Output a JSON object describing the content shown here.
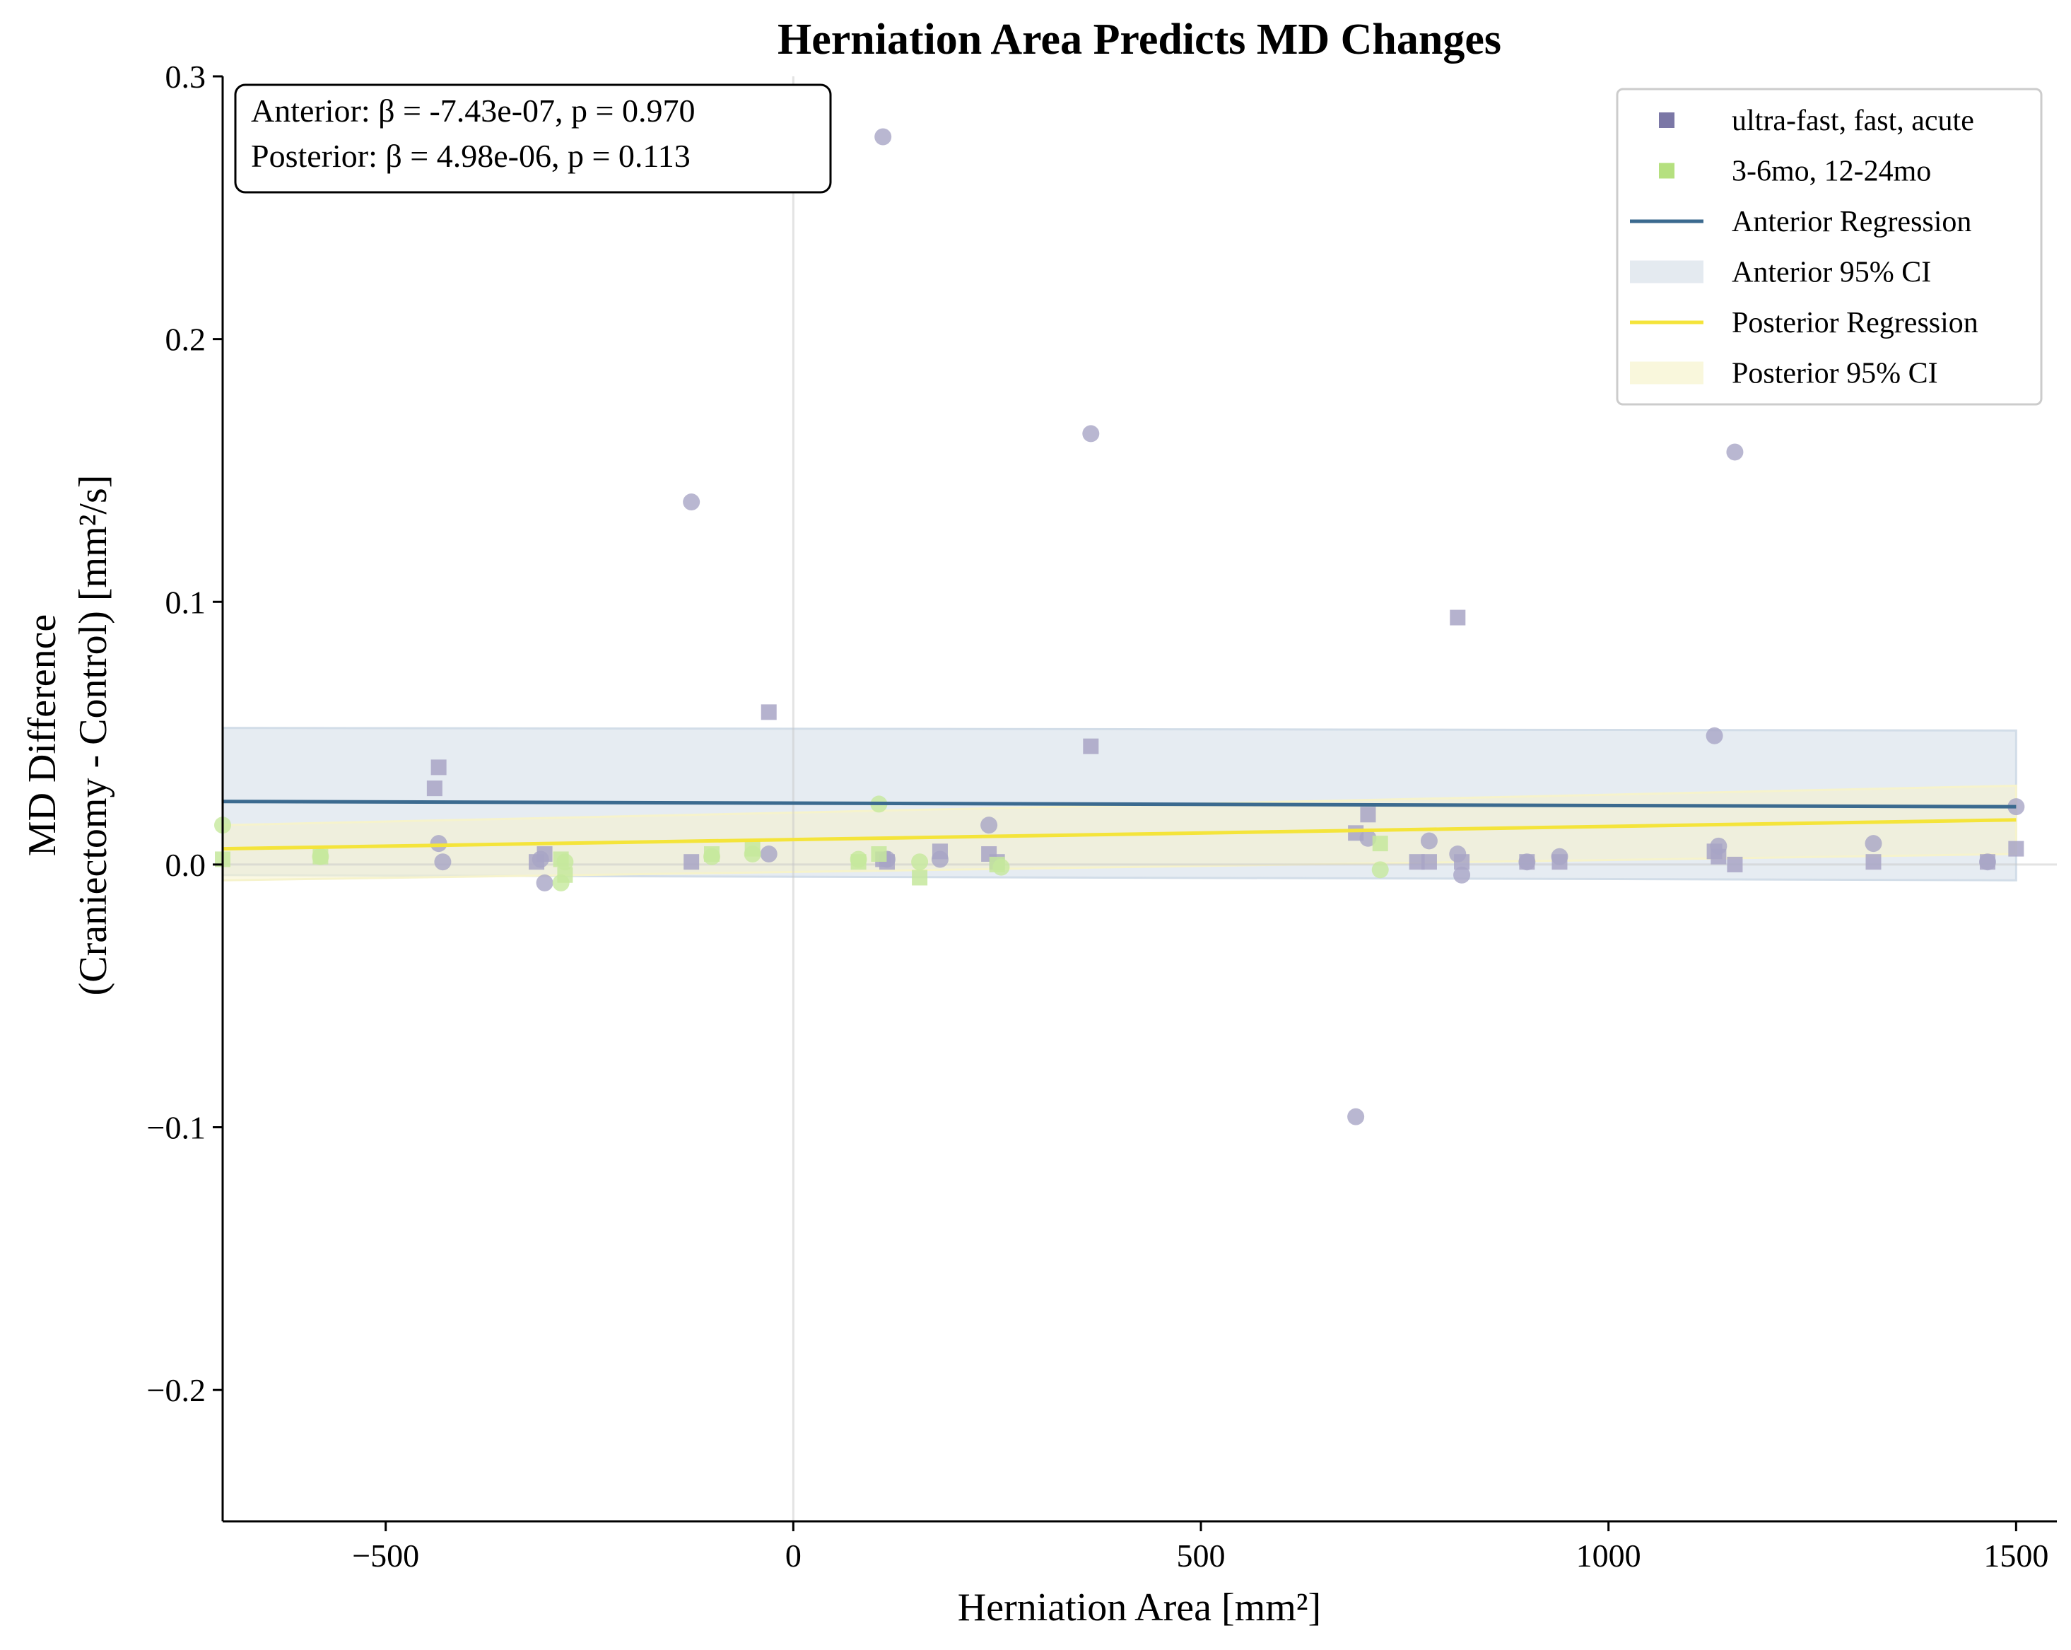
{
  "chart_data": {
    "type": "scatter",
    "title": "Herniation Area Predicts MD Changes",
    "xlabel": "Herniation Area [mm²]",
    "ylabel": [
      "MD Difference",
      "(Craniectomy - Control) [mm²/s]"
    ],
    "xlim": [
      -700,
      1550
    ],
    "ylim": [
      -0.25,
      0.3
    ],
    "xticks": [
      -500,
      0,
      500,
      1000,
      1500
    ],
    "xtick_labels": [
      "−500",
      "0",
      "500",
      "1000",
      "1500"
    ],
    "yticks": [
      -0.2,
      -0.1,
      0.0,
      0.1,
      0.2,
      0.3
    ],
    "ytick_labels": [
      "−0.2",
      "−0.1",
      "0.0",
      "0.1",
      "0.2",
      "0.3"
    ],
    "grid": false,
    "reference_lines": {
      "x": 0,
      "y": 0
    },
    "legend_position": "top-right",
    "stats_box": {
      "position": "top-left",
      "lines": [
        "Anterior: β = -7.43e-07, p = 0.970",
        "Posterior: β = 4.98e-06, p = 0.113"
      ]
    },
    "legend": [
      {
        "label": "ultra-fast, fast, acute",
        "kind": "square-marker",
        "color": "#7b77a6"
      },
      {
        "label": "3-6mo, 12-24mo",
        "kind": "square-marker",
        "color": "#b5e07f"
      },
      {
        "label": "Anterior Regression",
        "kind": "line",
        "color": "#3b6a8f"
      },
      {
        "label": "Anterior 95% CI",
        "kind": "band",
        "color": "#e4eaf0"
      },
      {
        "label": "Posterior Regression",
        "kind": "line",
        "color": "#f4e43a"
      },
      {
        "label": "Posterior 95% CI",
        "kind": "band",
        "color": "#f9f7dc"
      }
    ],
    "series": [
      {
        "name": "ultra-fast, fast, acute",
        "role": "anterior",
        "marker": "square",
        "color": "#a8a5c5",
        "points": [
          {
            "x": -435,
            "y": 0.037
          },
          {
            "x": -440,
            "y": 0.029
          },
          {
            "x": -315,
            "y": 0.001
          },
          {
            "x": -305,
            "y": 0.004
          },
          {
            "x": -125,
            "y": 0.001
          },
          {
            "x": -30,
            "y": 0.058
          },
          {
            "x": 110,
            "y": 0.002
          },
          {
            "x": 115,
            "y": 0.001
          },
          {
            "x": 180,
            "y": 0.005
          },
          {
            "x": 240,
            "y": 0.004
          },
          {
            "x": 250,
            "y": 0.001
          },
          {
            "x": 365,
            "y": 0.045
          },
          {
            "x": 690,
            "y": 0.012
          },
          {
            "x": 705,
            "y": 0.019
          },
          {
            "x": 765,
            "y": 0.001
          },
          {
            "x": 780,
            "y": 0.001
          },
          {
            "x": 815,
            "y": 0.094
          },
          {
            "x": 820,
            "y": 0.001
          },
          {
            "x": 900,
            "y": 0.001
          },
          {
            "x": 940,
            "y": 0.001
          },
          {
            "x": 1130,
            "y": 0.005
          },
          {
            "x": 1135,
            "y": 0.003
          },
          {
            "x": 1155,
            "y": 0.0
          },
          {
            "x": 1325,
            "y": 0.001
          },
          {
            "x": 1465,
            "y": 0.001
          },
          {
            "x": 1500,
            "y": 0.006
          }
        ]
      },
      {
        "name": "ultra-fast, fast, acute",
        "role": "posterior",
        "marker": "circle",
        "color": "#a8a5c5",
        "points": [
          {
            "x": -435,
            "y": 0.008
          },
          {
            "x": -430,
            "y": 0.001
          },
          {
            "x": -310,
            "y": 0.002
          },
          {
            "x": -305,
            "y": -0.007
          },
          {
            "x": -125,
            "y": 0.138
          },
          {
            "x": -30,
            "y": 0.004
          },
          {
            "x": 110,
            "y": 0.277
          },
          {
            "x": 115,
            "y": 0.002
          },
          {
            "x": 180,
            "y": 0.002
          },
          {
            "x": 240,
            "y": 0.015
          },
          {
            "x": 365,
            "y": 0.164
          },
          {
            "x": 690,
            "y": -0.096
          },
          {
            "x": 705,
            "y": 0.01
          },
          {
            "x": 780,
            "y": 0.009
          },
          {
            "x": 815,
            "y": 0.004
          },
          {
            "x": 820,
            "y": -0.004
          },
          {
            "x": 900,
            "y": 0.001
          },
          {
            "x": 940,
            "y": 0.003
          },
          {
            "x": 1130,
            "y": 0.049
          },
          {
            "x": 1135,
            "y": 0.007
          },
          {
            "x": 1155,
            "y": 0.157
          },
          {
            "x": 1325,
            "y": 0.008
          },
          {
            "x": 1465,
            "y": 0.001
          },
          {
            "x": 1500,
            "y": 0.022
          }
        ]
      },
      {
        "name": "3-6mo, 12-24mo",
        "role": "anterior",
        "marker": "square",
        "color": "#c6e89c",
        "points": [
          {
            "x": -700,
            "y": 0.002
          },
          {
            "x": -580,
            "y": 0.003
          },
          {
            "x": -285,
            "y": 0.002
          },
          {
            "x": -280,
            "y": -0.004
          },
          {
            "x": -100,
            "y": 0.004
          },
          {
            "x": -50,
            "y": 0.006
          },
          {
            "x": 80,
            "y": 0.001
          },
          {
            "x": 105,
            "y": 0.004
          },
          {
            "x": 155,
            "y": -0.005
          },
          {
            "x": 250,
            "y": 0.0
          },
          {
            "x": 720,
            "y": 0.008
          }
        ]
      },
      {
        "name": "3-6mo, 12-24mo",
        "role": "posterior",
        "marker": "circle",
        "color": "#c6e89c",
        "points": [
          {
            "x": -700,
            "y": 0.015
          },
          {
            "x": -580,
            "y": 0.003
          },
          {
            "x": -285,
            "y": -0.007
          },
          {
            "x": -280,
            "y": 0.001
          },
          {
            "x": -100,
            "y": 0.003
          },
          {
            "x": -50,
            "y": 0.004
          },
          {
            "x": 80,
            "y": 0.002
          },
          {
            "x": 105,
            "y": 0.023
          },
          {
            "x": 155,
            "y": 0.001
          },
          {
            "x": 255,
            "y": -0.001
          },
          {
            "x": 720,
            "y": -0.002
          }
        ]
      }
    ],
    "regression": [
      {
        "name": "Anterior Regression",
        "color": "#3b6a8f",
        "line": [
          [
            -700,
            0.024
          ],
          [
            1500,
            0.022
          ]
        ],
        "ci": {
          "x": [
            -700,
            1500
          ],
          "lower": [
            -0.004,
            -0.006
          ],
          "upper": [
            0.052,
            0.051
          ]
        },
        "ci_color": "#d2dde8"
      },
      {
        "name": "Posterior Regression",
        "color": "#f4e43a",
        "line": [
          [
            -700,
            0.006
          ],
          [
            1500,
            0.017
          ]
        ],
        "ci": {
          "x": [
            -700,
            1500
          ],
          "lower": [
            -0.006,
            0.004
          ],
          "upper": [
            0.015,
            0.03
          ]
        },
        "ci_color": "#f6f3cc"
      }
    ]
  }
}
